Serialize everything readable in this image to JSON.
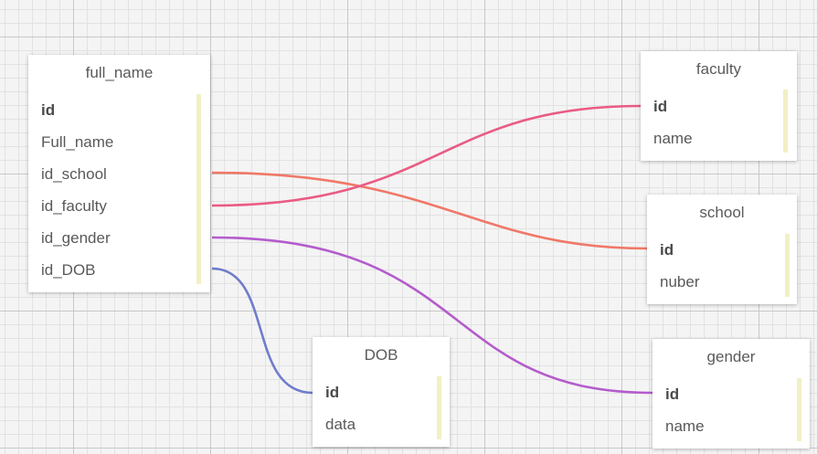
{
  "tables": {
    "full_name": {
      "title": "full_name",
      "fields": [
        "id",
        "Full_name",
        "id_school",
        "id_faculty",
        "id_gender",
        "id_DOB"
      ]
    },
    "faculty": {
      "title": "faculty",
      "fields": [
        "id",
        "name"
      ]
    },
    "school": {
      "title": "school",
      "fields": [
        "id",
        "nuber"
      ]
    },
    "dob": {
      "title": "DOB",
      "fields": [
        "id",
        "data"
      ]
    },
    "gender": {
      "title": "gender",
      "fields": [
        "id",
        "name"
      ]
    }
  },
  "relations": [
    {
      "from": "full_name.id_school",
      "to": "school.id",
      "color": "#f07868"
    },
    {
      "from": "full_name.id_faculty",
      "to": "faculty.id",
      "color": "#ea5b83"
    },
    {
      "from": "full_name.id_gender",
      "to": "gender.id",
      "color": "#b45ccc"
    },
    {
      "from": "full_name.id_DOB",
      "to": "DOB.id",
      "color": "#6f7ccc"
    }
  ],
  "colors": {
    "canvas": "#f4f4f4",
    "card": "#ffffff",
    "key_bar": "#f2f0c4"
  }
}
